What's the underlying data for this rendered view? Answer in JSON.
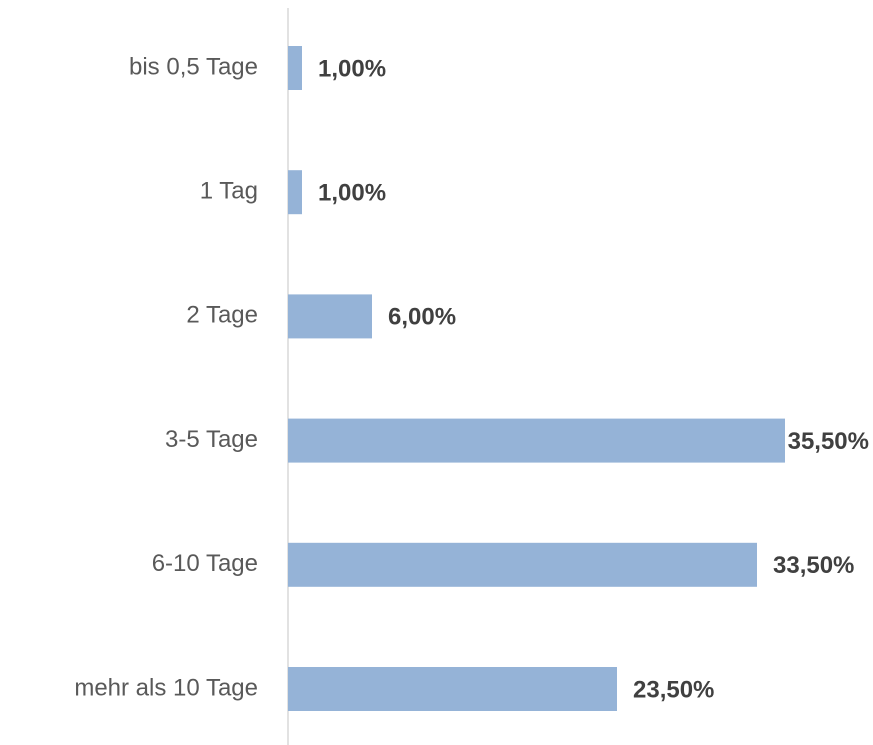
{
  "chart_data": {
    "type": "bar",
    "orientation": "horizontal",
    "categories": [
      "bis 0,5 Tage",
      "1 Tag",
      "2 Tage",
      "3-5 Tage",
      "6-10 Tage",
      "mehr als 10 Tage"
    ],
    "values": [
      1,
      1,
      6,
      35.5,
      33.5,
      23.5
    ],
    "value_labels": [
      "1,00%",
      "1,00%",
      "6,00%",
      "35,50%",
      "33,50%",
      "23,50%"
    ],
    "color": "#95b3d7"
  }
}
